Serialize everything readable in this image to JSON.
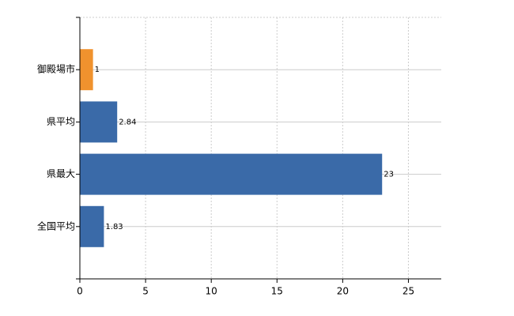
{
  "chart_data": {
    "type": "bar",
    "orientation": "horizontal",
    "categories": [
      "御殿場市",
      "県平均",
      "県最大",
      "全国平均"
    ],
    "values": [
      1,
      2.84,
      23,
      1.83
    ],
    "colors": [
      "#f0922e",
      "#3a6aa8",
      "#3a6aa8",
      "#3a6aa8"
    ],
    "xlim": [
      0,
      27.5
    ],
    "xticks": [
      0,
      5,
      10,
      15,
      20,
      25
    ],
    "grid": true
  }
}
